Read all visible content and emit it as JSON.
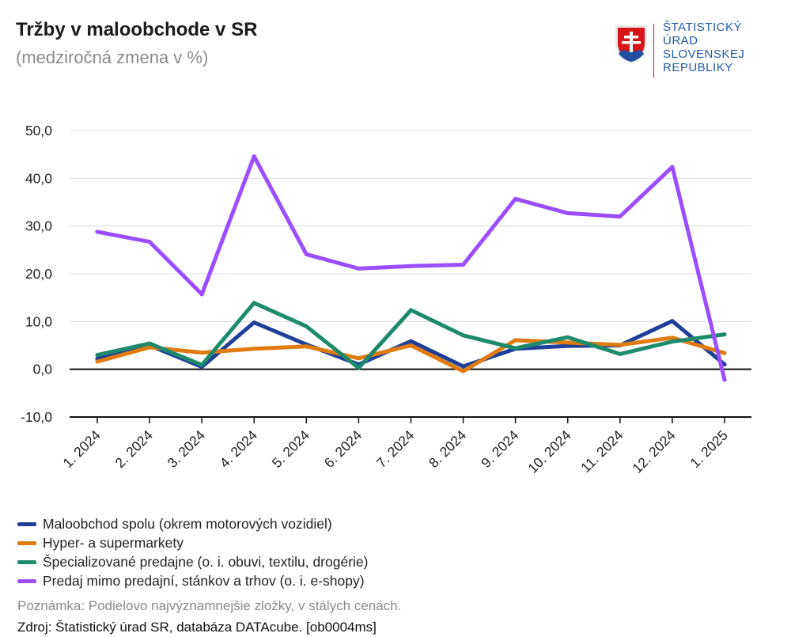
{
  "title": "Tržby v maloobchode v SR",
  "subtitle": "(medziročná zmena v %)",
  "logo": {
    "icon": "slovak-coat-of-arms-icon",
    "lines": [
      "ŠTATISTICKÝ",
      "ÚRAD",
      "SLOVENSKEJ",
      "REPUBLIKY"
    ]
  },
  "note": "Poznámka: Podielovo najvýznamnejšie zložky, v stálych cenách.",
  "source": "Zdroj: Štatistický úrad SR, databáza DATAcube. [ob0004ms]",
  "chart_data": {
    "type": "line",
    "title": "Tržby v maloobchode v SR",
    "subtitle": "(medziročná zmena v %)",
    "xlabel": "",
    "ylabel": "",
    "ylim": [
      -10,
      50
    ],
    "yticks": [
      -10,
      0,
      10,
      20,
      30,
      40,
      50
    ],
    "ytick_labels": [
      "-10,0",
      "0,0",
      "10,0",
      "20,0",
      "30,0",
      "40,0",
      "50,0"
    ],
    "grid": true,
    "legend_position": "bottom",
    "categories": [
      "1. 2024",
      "2. 2024",
      "3. 2024",
      "4. 2024",
      "5. 2024",
      "6. 2024",
      "7. 2024",
      "8. 2024",
      "9. 2024",
      "10. 2024",
      "11. 2024",
      "12. 2024",
      "1. 2025"
    ],
    "series": [
      {
        "name": "Maloobchod spolu (okrem motorových vozidiel)",
        "color": "#1f3f99",
        "values": [
          2.2,
          5.0,
          0.5,
          9.8,
          5.2,
          1.0,
          5.9,
          0.6,
          4.3,
          4.9,
          5.0,
          10.1,
          1.0
        ]
      },
      {
        "name": "Hyper- a supermarkety",
        "color": "#e07b10",
        "values": [
          1.6,
          4.6,
          3.5,
          4.3,
          4.8,
          2.3,
          5.0,
          -0.4,
          6.1,
          5.6,
          5.1,
          6.6,
          3.4
        ]
      },
      {
        "name": "Špecializované predajne (o. i. obuvi, textilu, drogérie)",
        "color": "#1e8a6c",
        "values": [
          3.0,
          5.4,
          0.9,
          13.9,
          9.0,
          0.3,
          12.4,
          7.1,
          4.4,
          6.7,
          3.2,
          5.8,
          7.3
        ]
      },
      {
        "name": "Predaj mimo predajní, stánkov a trhov (o. i. e-shopy)",
        "color": "#9b4dff",
        "values": [
          28.8,
          26.7,
          15.7,
          44.6,
          24.1,
          21.1,
          21.6,
          21.9,
          35.7,
          32.7,
          32.0,
          42.4,
          -2.2
        ]
      }
    ]
  }
}
